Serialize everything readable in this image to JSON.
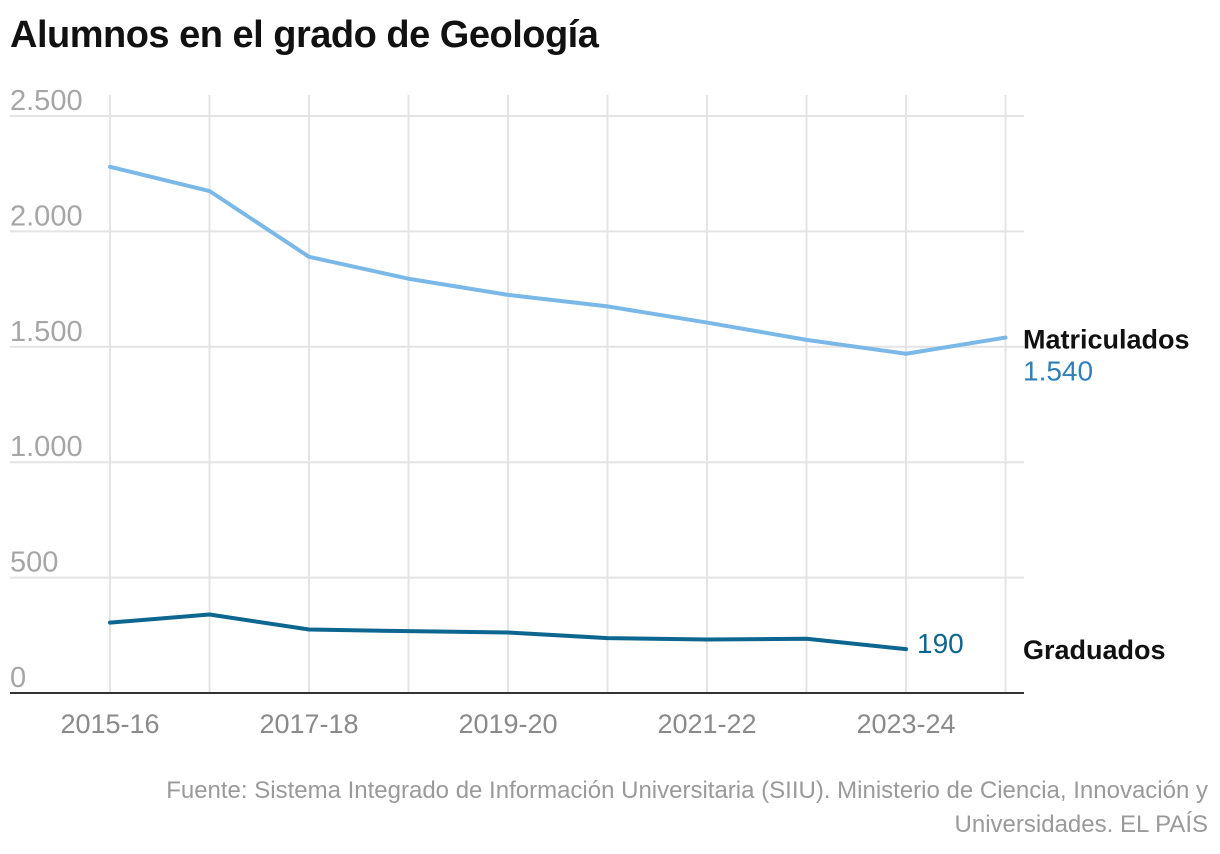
{
  "chart_data": {
    "type": "line",
    "title": "Alumnos en el grado de Geología",
    "x": [
      "2015-16",
      "2016-17",
      "2017-18",
      "2018-19",
      "2019-20",
      "2020-21",
      "2021-22",
      "2022-23",
      "2023-24",
      "2024-25"
    ],
    "x_tick_labels": [
      "2015-16",
      "2017-18",
      "2019-20",
      "2021-22",
      "2023-24"
    ],
    "y_ticks": [
      0,
      500,
      1000,
      1500,
      2000,
      2500
    ],
    "y_tick_labels": [
      "0",
      "500",
      "1.000",
      "1.500",
      "2.000",
      "2.500"
    ],
    "ylim": [
      0,
      2500
    ],
    "grid": true,
    "series": [
      {
        "name": "Matriculados",
        "color": "#7ab8e8",
        "label_color": "#2e7fba",
        "values": [
          2280,
          2175,
          1890,
          1795,
          1725,
          1675,
          1605,
          1530,
          1470,
          1540
        ],
        "end_label": "1.540"
      },
      {
        "name": "Graduados",
        "color": "#0d6690",
        "label_color": "#0d6690",
        "values": [
          305,
          340,
          275,
          268,
          262,
          238,
          232,
          235,
          190,
          null
        ],
        "end_label": "190"
      }
    ]
  },
  "source": "Fuente: Sistema Integrado de Información Universitaria (SIIU). Ministerio de Ciencia, Innovación y Universidades. EL PAÍS"
}
